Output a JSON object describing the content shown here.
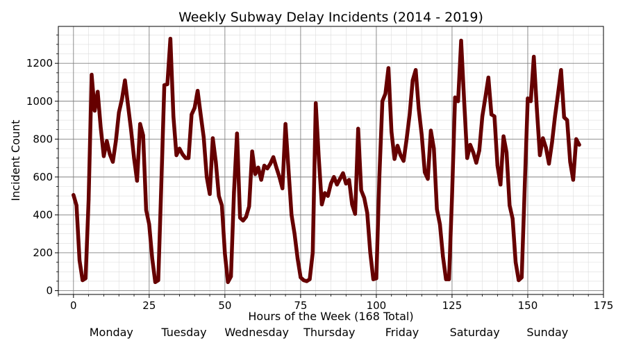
{
  "chart_data": {
    "type": "line",
    "title": "Weekly Subway Delay Incidents (2014 - 2019)",
    "xlabel": "Hours of the Week (168 Total)",
    "ylabel": "Incident Count",
    "xlim": [
      -5,
      175
    ],
    "ylim": [
      -20,
      1395
    ],
    "xticks": [
      0,
      25,
      50,
      75,
      100,
      125,
      150,
      175
    ],
    "yticks": [
      0,
      200,
      400,
      600,
      800,
      1000,
      1200
    ],
    "grid": {
      "major": true,
      "minor": true
    },
    "line_color": "#660000",
    "day_labels": [
      "Monday",
      "Tuesday",
      "Wednesday",
      "Thursday",
      "Friday",
      "Saturday",
      "Sunday"
    ],
    "series": [
      {
        "x": [
          0,
          1,
          2,
          3,
          4,
          5,
          6,
          7,
          8,
          9,
          10,
          11,
          12,
          13,
          14,
          15,
          16,
          17,
          18,
          19,
          20,
          21,
          22,
          23,
          24,
          25,
          26,
          27,
          28,
          29,
          30,
          31,
          32,
          33,
          34,
          35,
          36,
          37,
          38,
          39,
          40,
          41,
          42,
          43,
          44,
          45,
          46,
          47,
          48,
          49,
          50,
          51,
          52,
          53,
          54,
          55,
          56,
          57,
          58,
          59,
          60,
          61,
          62,
          63,
          64,
          65,
          66,
          67,
          68,
          69,
          70,
          71,
          72,
          73,
          74,
          75,
          76,
          77,
          78,
          79,
          80,
          81,
          82,
          83,
          84,
          85,
          86,
          87,
          88,
          89,
          90,
          91,
          92,
          93,
          94,
          95,
          96,
          97,
          98,
          99,
          100,
          101,
          102,
          103,
          104,
          105,
          106,
          107,
          108,
          109,
          110,
          111,
          112,
          113,
          114,
          115,
          116,
          117,
          118,
          119,
          120,
          121,
          122,
          123,
          124,
          125,
          126,
          127,
          128,
          129,
          130,
          131,
          132,
          133,
          134,
          135,
          136,
          137,
          138,
          139,
          140,
          141,
          142,
          143,
          144,
          145,
          146,
          147,
          148,
          149,
          150,
          151,
          152,
          153,
          154,
          155,
          156,
          157,
          158,
          159,
          160,
          161,
          162,
          163,
          164,
          165,
          166,
          167
        ],
        "values": [
          505,
          450,
          160,
          55,
          65,
          480,
          1140,
          950,
          1050,
          860,
          710,
          790,
          720,
          680,
          790,
          940,
          1010,
          1110,
          980,
          850,
          700,
          580,
          880,
          820,
          425,
          350,
          170,
          45,
          55,
          560,
          1085,
          1090,
          1330,
          920,
          715,
          750,
          720,
          700,
          700,
          930,
          965,
          1055,
          930,
          810,
          600,
          510,
          805,
          680,
          500,
          450,
          195,
          45,
          75,
          520,
          830,
          385,
          370,
          390,
          445,
          735,
          615,
          650,
          585,
          660,
          645,
          670,
          705,
          650,
          600,
          540,
          880,
          640,
          400,
          300,
          170,
          70,
          55,
          50,
          60,
          200,
          990,
          700,
          455,
          515,
          500,
          565,
          600,
          560,
          590,
          620,
          565,
          585,
          455,
          405,
          855,
          530,
          490,
          410,
          200,
          60,
          65,
          600,
          1000,
          1040,
          1175,
          840,
          695,
          765,
          715,
          685,
          800,
          930,
          1110,
          1165,
          960,
          820,
          625,
          590,
          845,
          750,
          430,
          350,
          180,
          60,
          60,
          500,
          1020,
          1000,
          1320,
          1000,
          700,
          770,
          730,
          675,
          740,
          920,
          1020,
          1125,
          930,
          920,
          660,
          560,
          815,
          730,
          450,
          380,
          150,
          55,
          70,
          550,
          1015,
          1000,
          1235,
          960,
          715,
          805,
          755,
          670,
          780,
          920,
          1040,
          1165,
          915,
          900,
          680,
          585,
          800,
          770
        ]
      }
    ]
  }
}
